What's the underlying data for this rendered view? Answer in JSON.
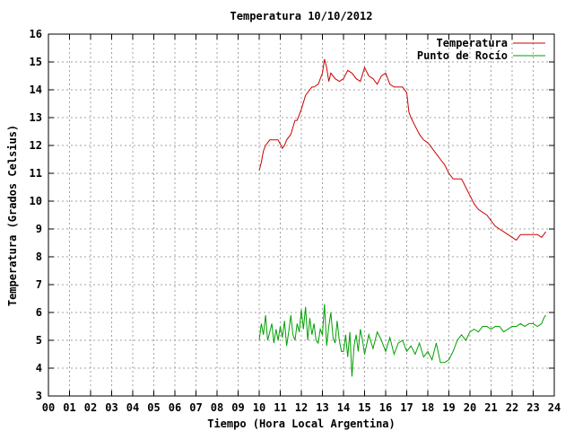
{
  "chart_data": {
    "type": "line",
    "title": "Temperatura 10/10/2012",
    "xlabel": "Tiempo (Hora Local Argentina)",
    "ylabel": "Temperatura (Grados Celsius)",
    "xlim": [
      0,
      24
    ],
    "ylim": [
      3,
      16
    ],
    "xticks": [
      "00",
      "01",
      "02",
      "03",
      "04",
      "05",
      "06",
      "07",
      "08",
      "09",
      "10",
      "11",
      "12",
      "13",
      "14",
      "15",
      "16",
      "17",
      "18",
      "19",
      "20",
      "21",
      "22",
      "23",
      "24"
    ],
    "yticks": [
      "3",
      "4",
      "5",
      "6",
      "7",
      "8",
      "9",
      "10",
      "11",
      "12",
      "13",
      "14",
      "15",
      "16"
    ],
    "grid": true,
    "legend_position": "top-right",
    "series": [
      {
        "name": "Temperatura",
        "color": "#cc0000",
        "x": [
          10.0,
          10.1,
          10.2,
          10.3,
          10.4,
          10.5,
          10.7,
          10.9,
          11.1,
          11.2,
          11.3,
          11.5,
          11.7,
          11.8,
          12.0,
          12.2,
          12.4,
          12.5,
          12.6,
          12.8,
          13.0,
          13.1,
          13.2,
          13.3,
          13.4,
          13.6,
          13.8,
          14.0,
          14.2,
          14.4,
          14.6,
          14.8,
          15.0,
          15.2,
          15.4,
          15.6,
          15.8,
          16.0,
          16.2,
          16.4,
          16.6,
          16.8,
          17.0,
          17.1,
          17.2,
          17.4,
          17.6,
          17.8,
          18.0,
          18.2,
          18.4,
          18.6,
          18.8,
          19.0,
          19.2,
          19.4,
          19.6,
          19.8,
          20.0,
          20.2,
          20.4,
          20.6,
          20.8,
          21.0,
          21.2,
          21.4,
          21.6,
          21.8,
          22.0,
          22.2,
          22.4,
          22.6,
          22.8,
          23.0,
          23.2,
          23.4,
          23.5,
          23.6
        ],
        "values": [
          11.1,
          11.4,
          11.8,
          12.0,
          12.1,
          12.2,
          12.2,
          12.2,
          11.9,
          12.0,
          12.2,
          12.4,
          12.9,
          12.9,
          13.3,
          13.8,
          14.0,
          14.1,
          14.1,
          14.2,
          14.6,
          15.1,
          14.8,
          14.3,
          14.6,
          14.4,
          14.3,
          14.4,
          14.7,
          14.6,
          14.4,
          14.3,
          14.8,
          14.5,
          14.4,
          14.2,
          14.5,
          14.6,
          14.2,
          14.1,
          14.1,
          14.1,
          13.9,
          13.2,
          13.0,
          12.7,
          12.4,
          12.2,
          12.1,
          11.9,
          11.7,
          11.5,
          11.3,
          11.0,
          10.8,
          10.8,
          10.8,
          10.5,
          10.2,
          9.9,
          9.7,
          9.6,
          9.5,
          9.3,
          9.1,
          9.0,
          8.9,
          8.8,
          8.7,
          8.6,
          8.8,
          8.8,
          8.8,
          8.8,
          8.8,
          8.7,
          8.8,
          8.9
        ]
      },
      {
        "name": "Punto de Rocío",
        "color": "#00a000",
        "x": [
          10.0,
          10.1,
          10.2,
          10.3,
          10.4,
          10.5,
          10.6,
          10.7,
          10.8,
          10.9,
          11.0,
          11.1,
          11.2,
          11.3,
          11.4,
          11.5,
          11.6,
          11.7,
          11.8,
          11.9,
          12.0,
          12.1,
          12.2,
          12.3,
          12.4,
          12.5,
          12.6,
          12.7,
          12.8,
          12.9,
          13.0,
          13.1,
          13.2,
          13.3,
          13.4,
          13.5,
          13.6,
          13.7,
          13.8,
          13.9,
          14.0,
          14.1,
          14.2,
          14.3,
          14.4,
          14.5,
          14.6,
          14.7,
          14.8,
          14.9,
          15.0,
          15.2,
          15.4,
          15.6,
          15.8,
          16.0,
          16.2,
          16.4,
          16.6,
          16.8,
          17.0,
          17.2,
          17.4,
          17.6,
          17.8,
          18.0,
          18.2,
          18.4,
          18.6,
          18.8,
          19.0,
          19.2,
          19.4,
          19.6,
          19.8,
          20.0,
          20.2,
          20.4,
          20.6,
          20.8,
          21.0,
          21.2,
          21.4,
          21.6,
          21.8,
          22.0,
          22.2,
          22.4,
          22.6,
          22.8,
          23.0,
          23.2,
          23.4,
          23.5,
          23.6
        ],
        "values": [
          5.0,
          5.6,
          5.2,
          5.9,
          5.0,
          5.3,
          5.6,
          4.9,
          5.4,
          5.0,
          5.5,
          5.1,
          5.7,
          4.8,
          5.3,
          5.9,
          5.2,
          5.0,
          5.6,
          5.3,
          6.1,
          5.4,
          6.2,
          5.0,
          5.8,
          5.2,
          5.6,
          5.0,
          4.9,
          5.4,
          5.2,
          6.3,
          4.8,
          5.5,
          6.0,
          5.1,
          4.9,
          5.7,
          5.0,
          4.6,
          4.6,
          5.2,
          4.4,
          5.3,
          3.7,
          4.8,
          5.2,
          4.6,
          5.4,
          5.0,
          4.5,
          5.2,
          4.7,
          5.3,
          5.0,
          4.6,
          5.1,
          4.5,
          4.9,
          5.0,
          4.6,
          4.8,
          4.5,
          4.9,
          4.4,
          4.6,
          4.3,
          4.9,
          4.2,
          4.2,
          4.3,
          4.6,
          5.0,
          5.2,
          5.0,
          5.3,
          5.4,
          5.3,
          5.5,
          5.5,
          5.4,
          5.5,
          5.5,
          5.3,
          5.4,
          5.5,
          5.5,
          5.6,
          5.5,
          5.6,
          5.6,
          5.5,
          5.6,
          5.8,
          5.9
        ]
      }
    ]
  }
}
